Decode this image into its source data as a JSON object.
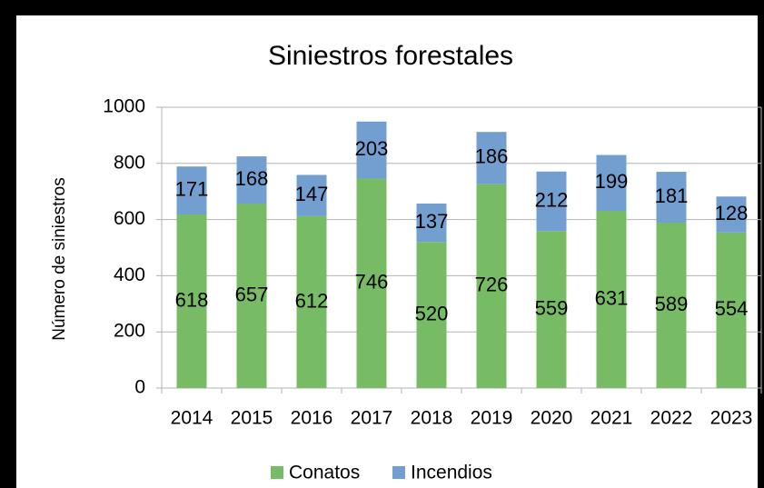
{
  "chart_data": {
    "type": "stacked_bar",
    "title": "Siniestros forestales",
    "y_label": "Número de siniestros",
    "categories": [
      "2014",
      "2015",
      "2016",
      "2017",
      "2018",
      "2019",
      "2020",
      "2021",
      "2022",
      "2023"
    ],
    "series": [
      {
        "name": "Conatos",
        "color": "#77bc65",
        "values": [
          618,
          657,
          612,
          746,
          520,
          726,
          559,
          631,
          589,
          554
        ]
      },
      {
        "name": "Incendios",
        "color": "#729fcf",
        "values": [
          171,
          168,
          147,
          203,
          137,
          186,
          212,
          199,
          181,
          128
        ]
      }
    ],
    "ylim": [
      0,
      1000
    ],
    "yticks": [
      0,
      200,
      400,
      600,
      800,
      1000
    ],
    "grid": true,
    "legend": "bottom"
  }
}
